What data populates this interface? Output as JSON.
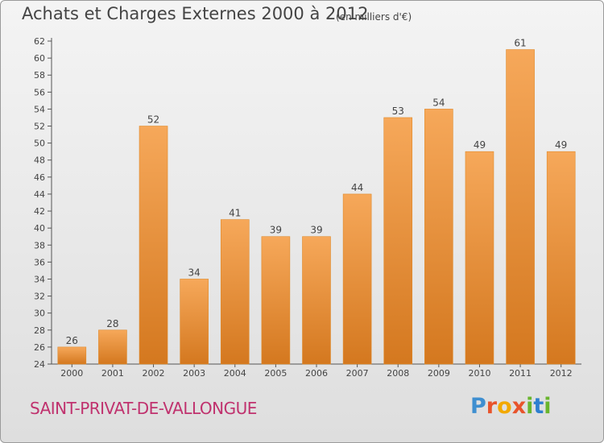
{
  "chart_data": {
    "type": "bar",
    "title": "Achats et Charges Externes 2000 à 2012",
    "unit": "(en milliers d'€)",
    "categories": [
      "2000",
      "2001",
      "2002",
      "2003",
      "2004",
      "2005",
      "2006",
      "2007",
      "2008",
      "2009",
      "2010",
      "2011",
      "2012"
    ],
    "values": [
      26,
      28,
      52,
      34,
      41,
      39,
      39,
      44,
      53,
      54,
      49,
      61,
      49
    ],
    "ylim": [
      24,
      62
    ],
    "yticks": [
      24,
      26,
      28,
      30,
      32,
      34,
      36,
      38,
      40,
      42,
      44,
      46,
      48,
      50,
      52,
      54,
      56,
      58,
      60,
      62
    ],
    "grid": false,
    "colors": {
      "bar_light": "#f6a85a",
      "bar_dark": "#d4781f",
      "bar_edge": "#e08a2a"
    }
  },
  "footer": {
    "commune": "SAINT-PRIVAT-DE-VALLONGUE",
    "logo": "Proxiti"
  }
}
